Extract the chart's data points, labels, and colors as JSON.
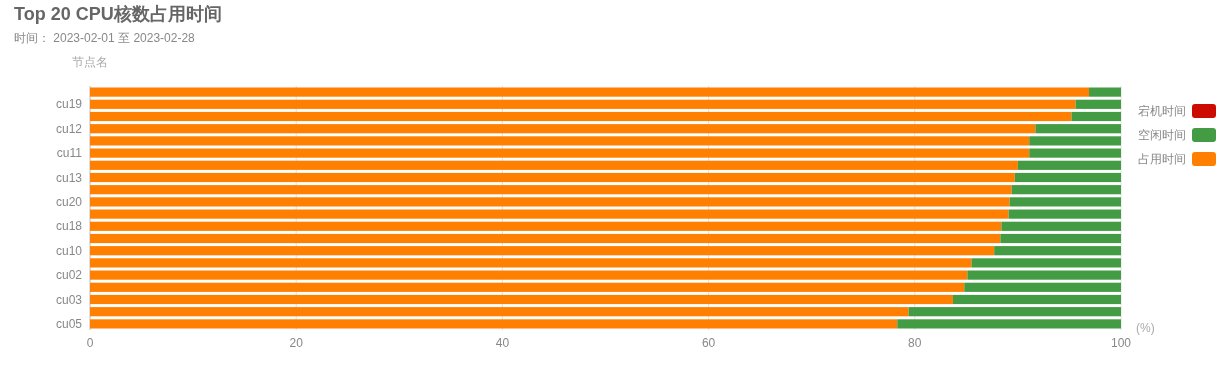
{
  "chart_data": {
    "type": "bar",
    "orientation": "horizontal",
    "stacked": true,
    "title": "Top 20 CPU核数占用时间",
    "subtitle": "时间： 2023-02-01 至 2023-02-28",
    "ylabel": "节点名",
    "xlabel": "(%)",
    "categories": [
      null,
      "cu19",
      null,
      "cu12",
      null,
      "cu11",
      null,
      "cu13",
      null,
      "cu20",
      null,
      "cu18",
      null,
      "cu10",
      null,
      "cu02",
      null,
      "cu03",
      null,
      "cu05"
    ],
    "series": [
      {
        "name": "占用时间",
        "color": "#ff7f00",
        "values": [
          96.9,
          95.6,
          95.2,
          91.7,
          91.1,
          91.1,
          90.0,
          89.7,
          89.4,
          89.2,
          89.1,
          88.4,
          88.3,
          87.7,
          85.5,
          85.1,
          84.8,
          83.7,
          79.4,
          78.3
        ]
      },
      {
        "name": "空闲时间",
        "color": "#439b43",
        "values": [
          3.1,
          4.4,
          4.8,
          8.3,
          8.9,
          8.9,
          10.0,
          10.3,
          10.6,
          10.8,
          10.9,
          11.6,
          11.7,
          12.3,
          14.5,
          14.9,
          15.2,
          16.3,
          20.6,
          21.7
        ]
      },
      {
        "name": "宕机时间",
        "color": "#cc0c00",
        "values": [
          0,
          0,
          0,
          0,
          0,
          0,
          0,
          0,
          0,
          0,
          0,
          0,
          0,
          0,
          0,
          0,
          0,
          0,
          0,
          0
        ]
      }
    ],
    "xlim": [
      0,
      100
    ],
    "xticks": [
      0,
      20,
      40,
      60,
      80,
      100
    ],
    "grid": "x",
    "legend": "right"
  }
}
